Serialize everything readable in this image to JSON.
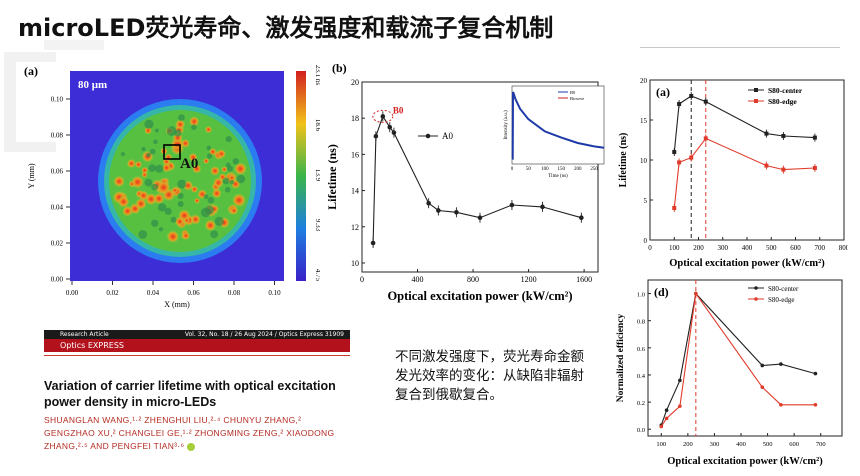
{
  "page_title": "microLED荧光寿命、激发强度和载流子复合机制",
  "panel_a": {
    "label": "(a)",
    "scale_text": "80 μm",
    "marker_label": "A0",
    "xlabel": "X (mm)",
    "ylabel": "Y (mm)",
    "x_ticks": [
      "0.00",
      "0.02",
      "0.04",
      "0.06",
      "0.08",
      "0.10"
    ],
    "y_ticks": [
      "0.10",
      "0.08",
      "0.06",
      "0.04",
      "0.02",
      "0.00"
    ],
    "colorbar_ticks": [
      "23.1 ns",
      "18.6",
      "13.9",
      "9.33",
      "4.75"
    ],
    "colors": {
      "background": "#3d2dd6",
      "low": "#1a3fd8",
      "mid": "#37b24a",
      "high": "#e02424"
    }
  },
  "panel_b": {
    "label": "(b)",
    "xlabel": "Optical excitation power (kW/cm²)",
    "ylabel": "Lifetime (ns)",
    "legend": "A0",
    "annotation": "B0",
    "inset": {
      "xlabel": "Time (ns)",
      "ylabel": "Intensity (a.u.)",
      "legend": [
        "B0",
        "Bicurve"
      ]
    }
  },
  "panel_c": {
    "label": "(a)",
    "xlabel": "Optical excitation power (kW/cm²)",
    "ylabel": "Lifetime (ns)",
    "legend": [
      "S80-center",
      "S80-edge"
    ]
  },
  "panel_d": {
    "label": "(d)",
    "xlabel": "Optical excitation power (kW/cm²)",
    "ylabel": "Normalized efficiency",
    "legend": [
      "S80-center",
      "S80-edge"
    ]
  },
  "chart_data": [
    {
      "type": "line",
      "x": [
        80,
        100,
        150,
        200,
        230,
        480,
        550,
        680,
        850,
        1080,
        1300,
        1580
      ],
      "series": [
        {
          "name": "A0",
          "values": [
            11.1,
            17.0,
            18.1,
            17.5,
            17.2,
            13.3,
            12.9,
            12.8,
            12.5,
            13.2,
            13.1,
            12.5
          ]
        }
      ],
      "xlim": [
        0,
        1700
      ],
      "ylim": [
        9.5,
        20
      ],
      "x_ticks": [
        "0",
        "400",
        "800",
        "1200",
        "1600"
      ],
      "y_ticks": [
        "10",
        "12",
        "14",
        "16",
        "18",
        "20"
      ],
      "xlabel": "Optical excitation power (kW/cm²)",
      "ylabel": "Lifetime (ns)"
    },
    {
      "type": "line",
      "x": [
        0,
        2,
        3,
        5,
        10,
        25,
        50,
        100,
        150,
        200,
        250,
        280
      ],
      "series": [
        {
          "name": "B0",
          "values": [
            0.02,
            0.02,
            1.0,
            0.98,
            0.9,
            0.75,
            0.6,
            0.42,
            0.33,
            0.25,
            0.2,
            0.18
          ]
        }
      ],
      "xlim": [
        0,
        280
      ],
      "x_ticks": [
        "0",
        "50",
        "100",
        "150",
        "200",
        "250"
      ],
      "xlabel": "Time (ns)",
      "ylabel": "Intensity (a.u.)"
    },
    {
      "type": "line",
      "x": [
        100,
        120,
        170,
        230,
        480,
        550,
        680
      ],
      "series": [
        {
          "name": "S80-center",
          "values": [
            11.0,
            17.0,
            18.0,
            17.3,
            13.3,
            13.0,
            12.8
          ]
        },
        {
          "name": "S80-edge",
          "values": [
            4.0,
            9.7,
            10.3,
            12.7,
            9.3,
            8.8,
            9.0
          ]
        }
      ],
      "xlim": [
        0,
        800
      ],
      "ylim": [
        0,
        20
      ],
      "x_ticks": [
        "0",
        "100",
        "200",
        "300",
        "400",
        "500",
        "600",
        "700",
        "800"
      ],
      "y_ticks": [
        "0",
        "5",
        "10",
        "15",
        "20"
      ],
      "xlabel": "Optical excitation power (kW/cm²)",
      "ylabel": "Lifetime (ns)"
    },
    {
      "type": "line",
      "x": [
        100,
        120,
        170,
        230,
        480,
        550,
        680
      ],
      "series": [
        {
          "name": "S80-center",
          "values": [
            0.03,
            0.14,
            0.36,
            1.0,
            0.47,
            0.48,
            0.41
          ]
        },
        {
          "name": "S80-edge",
          "values": [
            0.02,
            0.08,
            0.17,
            1.0,
            0.31,
            0.18,
            0.18
          ]
        }
      ],
      "xlim": [
        50,
        780
      ],
      "ylim": [
        -0.05,
        1.1
      ],
      "x_ticks": [
        "100",
        "200",
        "300",
        "400",
        "500",
        "600",
        "700"
      ],
      "y_ticks": [
        "0.0",
        "0.2",
        "0.4",
        "0.6",
        "0.8",
        "1.0"
      ],
      "xlabel": "Optical excitation power (kW/cm²)",
      "ylabel": "Normalized efficiency"
    }
  ],
  "paper": {
    "banner_left": "Research Article",
    "banner_right": "Vol. 32, No. 18 / 26 Aug 2024 / Optics Express 31909",
    "journal": "Optics EXPRESS",
    "title": "Variation of carrier lifetime with optical excitation power density in micro-LEDs",
    "authors": "SHUANGLAN WANG,¹·² ZHENGHUI LIU,²·⁴ CHUNYU ZHANG,² GENGZHAO XU,² CHANGLEI GE,¹·² ZHONGMING ZENG,² XIAODONG ZHANG,²·⁵ AND PENGFEI TIAN³·⁶"
  },
  "caption": "不同激发强度下，荧光寿命金额发光效率的变化：从缺陷非辐射复合到俄歇复合。"
}
